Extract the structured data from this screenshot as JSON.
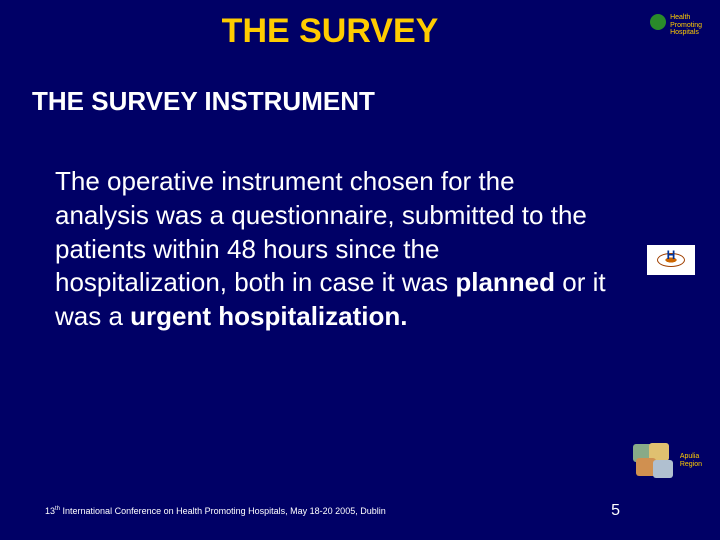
{
  "slide": {
    "title": "THE SURVEY",
    "subtitle": "THE SURVEY INSTRUMENT",
    "body_part1": "The operative instrument chosen for the analysis was a questionnaire, submitted to the patients within 48 hours since the hospitalization, both in case it was ",
    "body_bold1": "planned",
    "body_part2": " or it was a ",
    "body_bold2": "urgent hospitalization.",
    "slide_number": "5"
  },
  "badge": {
    "line1": "Health",
    "line2": "Promoting",
    "line3": "Hospitals"
  },
  "region": {
    "line1": "Apulia",
    "line2": "Region"
  },
  "footer": {
    "prefix": "13",
    "suffix": "th",
    "text": " International Conference on Health Promoting Hospitals, May 18-20 2005, Dublin"
  },
  "colors": {
    "background": "#000066",
    "accent": "#ffcc00",
    "text": "#ffffff",
    "badge_green": "#2a8a2a"
  }
}
